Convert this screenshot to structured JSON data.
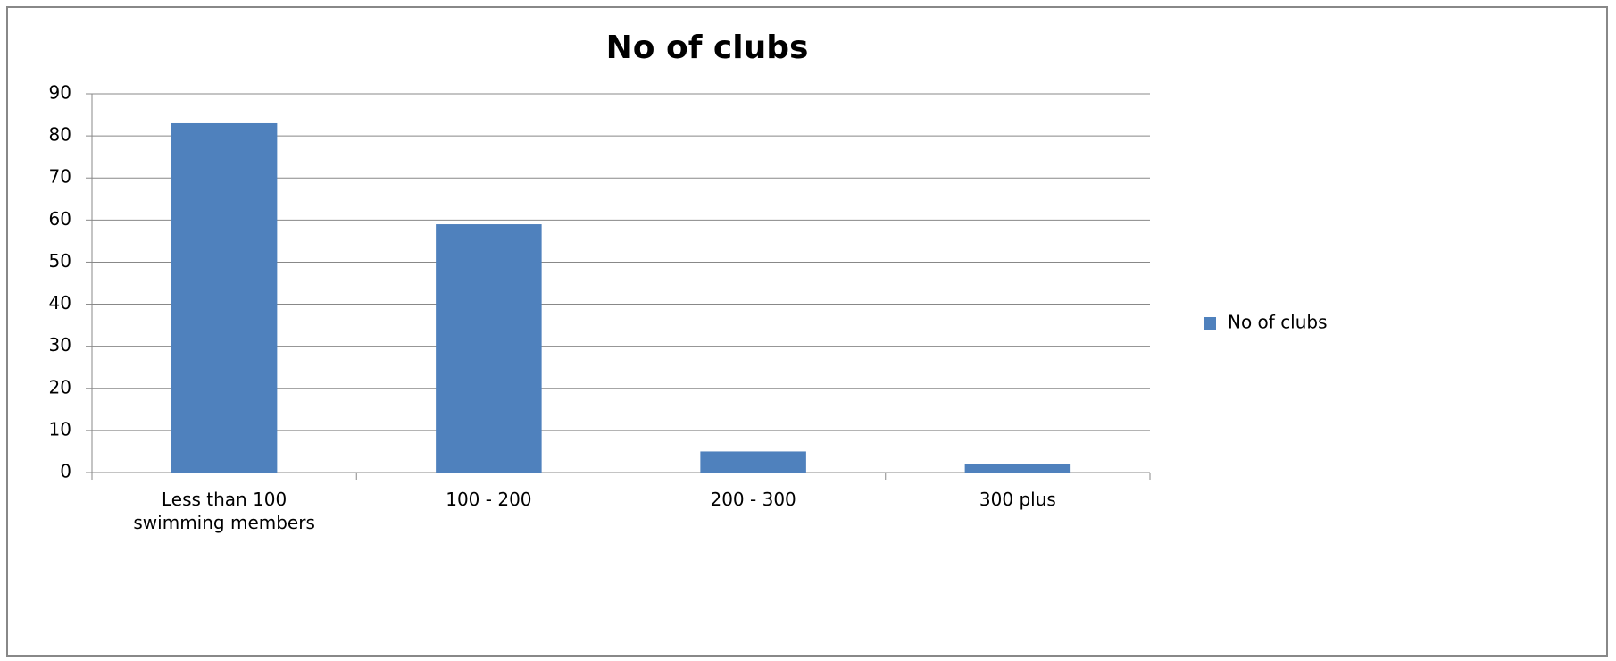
{
  "chart_data": {
    "type": "bar",
    "title": "No of clubs",
    "categories": [
      "Less than 100 swimming members",
      "100 - 200",
      "200 - 300",
      "300 plus"
    ],
    "series": [
      {
        "name": "No of clubs",
        "color": "#4f81bd",
        "values": [
          83,
          59,
          5,
          2
        ]
      }
    ],
    "ylim": [
      0,
      90
    ],
    "yticks": [
      0,
      10,
      20,
      30,
      40,
      50,
      60,
      70,
      80,
      90
    ],
    "grid": true,
    "legend": "right"
  }
}
